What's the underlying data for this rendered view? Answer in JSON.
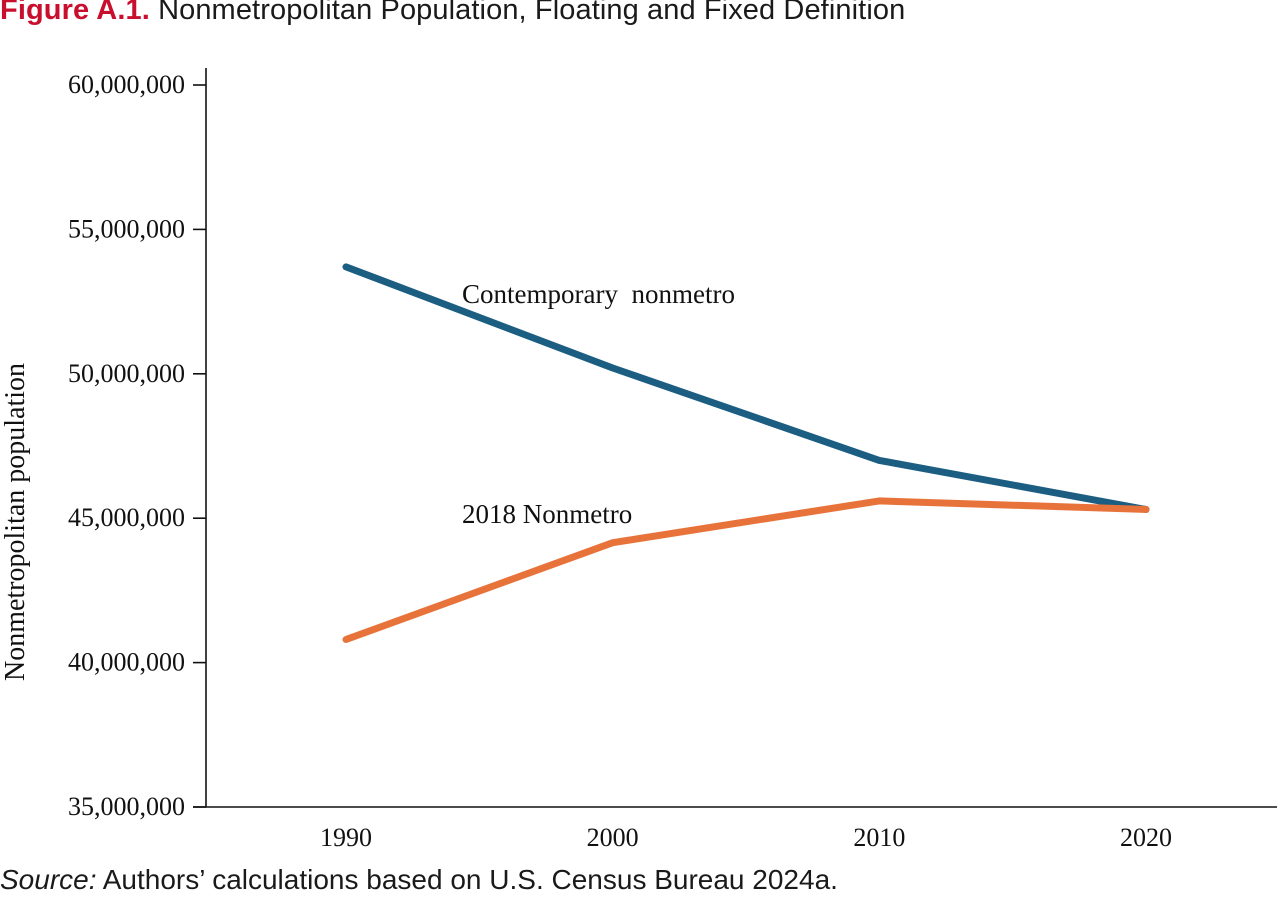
{
  "figure": {
    "number": "Figure A.1.",
    "title": "Nonmetropolitan Population, Floating and Fixed Definition"
  },
  "source": {
    "label": "Source:",
    "text": "Authors’ calculations based on U.S. Census Bureau 2024a."
  },
  "colors": {
    "figure_number": "#c8102e",
    "contemporary": "#1b5e82",
    "fixed_2018": "#e8733a"
  },
  "chart_data": {
    "type": "line",
    "title": "Nonmetropolitan Population, Floating and Fixed Definition",
    "xlabel": "",
    "ylabel": "Nonmetropolitan population",
    "x": [
      1990,
      2000,
      2010,
      2020
    ],
    "x_tick_labels": [
      "1990",
      "2000",
      "2010",
      "2020"
    ],
    "ylim": [
      35000000,
      60000000
    ],
    "y_ticks": [
      35000000,
      40000000,
      45000000,
      50000000,
      55000000,
      60000000
    ],
    "y_tick_labels": [
      "35,000,000",
      "40,000,000",
      "45,000,000",
      "50,000,000",
      "55,000,000",
      "60,000,000"
    ],
    "grid": false,
    "legend": "none (series labeled inline)",
    "series": [
      {
        "name": "Contemporary  nonmetro",
        "color": "#1b5e82",
        "values": [
          53700000,
          50200000,
          47000000,
          45300000
        ]
      },
      {
        "name": "2018 Nonmetro",
        "color": "#e8733a",
        "values": [
          40800000,
          44150000,
          45600000,
          45300000
        ]
      }
    ]
  }
}
